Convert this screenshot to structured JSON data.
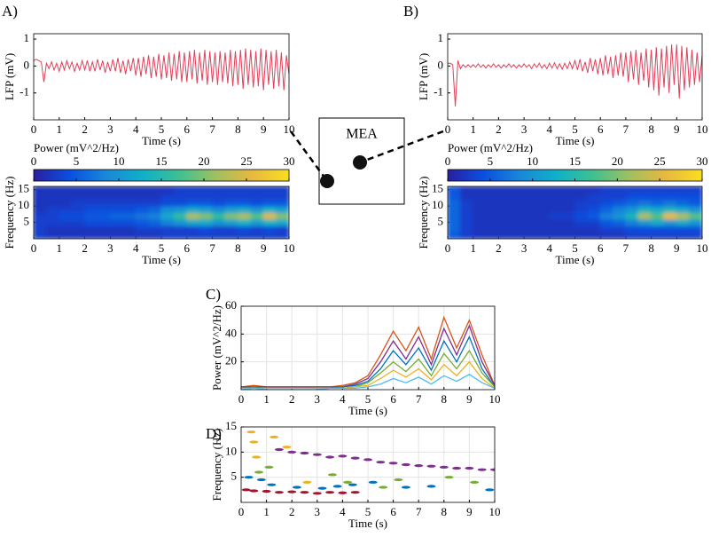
{
  "mea_label": "MEA",
  "chart_data": [
    {
      "type": "line",
      "panel": "A)",
      "ylabel": "LFP (mV)",
      "xlabel": "Time (s)",
      "color": "#e0405a",
      "xlim": [
        0,
        10
      ],
      "xticks": [
        0,
        1,
        2,
        3,
        4,
        5,
        6,
        7,
        8,
        9,
        10
      ],
      "ylim": [
        -2,
        1.2
      ],
      "yticks": [
        -1,
        0,
        1
      ],
      "x": [
        0,
        0.1,
        0.2,
        0.3,
        0.4,
        0.5,
        0.6,
        0.7,
        0.8,
        0.9,
        1,
        1.1,
        1.2,
        1.3,
        1.4,
        1.5,
        1.6,
        1.7,
        1.8,
        1.9,
        2,
        2.1,
        2.2,
        2.3,
        2.4,
        2.5,
        2.6,
        2.7,
        2.8,
        2.9,
        3,
        3.1,
        3.2,
        3.3,
        3.4,
        3.5,
        3.6,
        3.7,
        3.8,
        3.9,
        4,
        4.1,
        4.2,
        4.3,
        4.4,
        4.5,
        4.6,
        4.7,
        4.8,
        4.9,
        5,
        5.1,
        5.2,
        5.3,
        5.4,
        5.5,
        5.6,
        5.7,
        5.8,
        5.9,
        6,
        6.1,
        6.2,
        6.3,
        6.4,
        6.5,
        6.6,
        6.7,
        6.8,
        6.9,
        7,
        7.1,
        7.2,
        7.3,
        7.4,
        7.5,
        7.6,
        7.7,
        7.8,
        7.9,
        8,
        8.1,
        8.2,
        8.3,
        8.4,
        8.5,
        8.6,
        8.7,
        8.8,
        8.9,
        9,
        9.1,
        9.2,
        9.3,
        9.4,
        9.5,
        9.6,
        9.7,
        9.8,
        9.9,
        10
      ],
      "values": [
        0.2,
        0.25,
        0.2,
        0.15,
        -0.6,
        0.1,
        -0.1,
        0.15,
        -0.15,
        0.1,
        -0.2,
        0.15,
        -0.15,
        0.2,
        -0.1,
        0.15,
        -0.2,
        0.1,
        -0.15,
        0.2,
        -0.15,
        0.2,
        -0.2,
        0.15,
        -0.2,
        0.25,
        -0.15,
        0.2,
        -0.25,
        0.15,
        -0.2,
        0.25,
        -0.2,
        0.3,
        -0.25,
        0.2,
        -0.3,
        0.25,
        -0.2,
        0.3,
        -0.35,
        0.3,
        -0.4,
        0.35,
        -0.3,
        0.4,
        -0.45,
        0.35,
        -0.4,
        0.45,
        -0.5,
        0.4,
        -0.45,
        0.5,
        -0.55,
        0.45,
        -0.5,
        0.55,
        -0.6,
        0.5,
        -0.6,
        0.55,
        -0.5,
        0.6,
        -0.65,
        0.5,
        -0.55,
        0.6,
        -0.7,
        0.55,
        -0.6,
        0.5,
        -0.7,
        0.55,
        -0.6,
        0.5,
        -0.65,
        0.6,
        -0.75,
        0.55,
        -0.7,
        0.6,
        -0.85,
        0.65,
        -0.7,
        0.6,
        -0.8,
        0.55,
        -0.75,
        0.65,
        -0.9,
        0.6,
        -0.7,
        0.55,
        -0.85,
        0.6,
        -0.75,
        0.5,
        -0.9,
        0.4,
        -0.3
      ]
    },
    {
      "type": "heatmap",
      "ylabel": "Frequency (Hz)",
      "xlabel": "Time (s)",
      "colorbar_label": "Power (mV^2/Hz)",
      "xlim": [
        0,
        10
      ],
      "xticks": [
        0,
        1,
        2,
        3,
        4,
        5,
        6,
        7,
        8,
        9,
        10
      ],
      "ylim": [
        0,
        16
      ],
      "yticks": [
        5,
        10,
        15
      ],
      "zlim": [
        0,
        30
      ],
      "zticks": [
        0,
        5,
        10,
        15,
        20,
        25,
        30
      ],
      "colormap": [
        "#2a1fa0",
        "#0a50e0",
        "#1a88d8",
        "#10b0c8",
        "#40c090",
        "#a0c060",
        "#e8b840",
        "#f8e020"
      ],
      "x": [
        0.25,
        0.75,
        1.25,
        1.75,
        2.25,
        2.75,
        3.25,
        3.75,
        4.25,
        4.75,
        5.25,
        5.75,
        6.25,
        6.75,
        7.25,
        7.75,
        8.25,
        8.75,
        9.25,
        9.75
      ],
      "y": [
        1,
        3,
        5,
        7,
        9,
        11,
        13,
        15
      ],
      "z": [
        [
          3,
          2,
          2,
          2,
          2,
          2,
          2,
          2,
          2,
          2,
          3,
          3,
          3,
          3,
          3,
          3,
          3,
          3,
          3,
          3
        ],
        [
          3,
          2,
          2,
          2,
          2,
          2,
          2,
          2,
          3,
          3,
          3,
          3,
          3,
          4,
          3,
          3,
          4,
          3,
          4,
          3
        ],
        [
          3,
          3,
          3,
          3,
          4,
          4,
          4,
          4,
          5,
          6,
          8,
          10,
          12,
          12,
          10,
          11,
          13,
          11,
          13,
          12
        ],
        [
          3,
          3,
          4,
          4,
          5,
          5,
          6,
          6,
          7,
          8,
          12,
          16,
          22,
          20,
          16,
          20,
          22,
          18,
          25,
          20
        ],
        [
          2,
          3,
          3,
          3,
          4,
          4,
          4,
          4,
          5,
          6,
          9,
          10,
          12,
          11,
          9,
          11,
          12,
          10,
          13,
          11
        ],
        [
          2,
          2,
          2,
          3,
          3,
          3,
          3,
          3,
          3,
          3,
          4,
          4,
          5,
          5,
          4,
          5,
          5,
          4,
          5,
          5
        ],
        [
          2,
          2,
          2,
          2,
          2,
          2,
          2,
          2,
          2,
          2,
          3,
          3,
          3,
          3,
          3,
          3,
          3,
          3,
          3,
          3
        ],
        [
          2,
          2,
          2,
          2,
          2,
          2,
          2,
          2,
          2,
          2,
          2,
          3,
          3,
          3,
          3,
          3,
          3,
          3,
          3,
          3
        ]
      ]
    },
    {
      "type": "line",
      "panel": "B)",
      "ylabel": "LFP (mV)",
      "xlabel": "Time (s)",
      "color": "#e0405a",
      "xlim": [
        0,
        10
      ],
      "xticks": [
        0,
        1,
        2,
        3,
        4,
        5,
        6,
        7,
        8,
        9,
        10
      ],
      "ylim": [
        -2,
        1.2
      ],
      "yticks": [
        -1,
        0,
        1
      ],
      "x": [
        0,
        0.1,
        0.2,
        0.3,
        0.4,
        0.5,
        0.6,
        0.7,
        0.8,
        0.9,
        1,
        1.1,
        1.2,
        1.3,
        1.4,
        1.5,
        1.6,
        1.7,
        1.8,
        1.9,
        2,
        2.1,
        2.2,
        2.3,
        2.4,
        2.5,
        2.6,
        2.7,
        2.8,
        2.9,
        3,
        3.1,
        3.2,
        3.3,
        3.4,
        3.5,
        3.6,
        3.7,
        3.8,
        3.9,
        4,
        4.1,
        4.2,
        4.3,
        4.4,
        4.5,
        4.6,
        4.7,
        4.8,
        4.9,
        5,
        5.1,
        5.2,
        5.3,
        5.4,
        5.5,
        5.6,
        5.7,
        5.8,
        5.9,
        6,
        6.1,
        6.2,
        6.3,
        6.4,
        6.5,
        6.6,
        6.7,
        6.8,
        6.9,
        7,
        7.1,
        7.2,
        7.3,
        7.4,
        7.5,
        7.6,
        7.7,
        7.8,
        7.9,
        8,
        8.1,
        8.2,
        8.3,
        8.4,
        8.5,
        8.6,
        8.7,
        8.8,
        8.9,
        9,
        9.1,
        9.2,
        9.3,
        9.4,
        9.5,
        9.6,
        9.7,
        9.8,
        9.9,
        10
      ],
      "values": [
        0.1,
        0.1,
        0.05,
        -1.5,
        0.2,
        -0.1,
        0.05,
        -0.05,
        0.05,
        -0.05,
        0.05,
        -0.05,
        0.08,
        -0.05,
        0.05,
        -0.08,
        0.05,
        -0.05,
        0.08,
        -0.05,
        0.05,
        -0.08,
        0.05,
        -0.05,
        0.08,
        -0.05,
        0.05,
        -0.08,
        0.05,
        -0.05,
        0.08,
        -0.05,
        0.05,
        -0.1,
        0.08,
        -0.05,
        0.1,
        -0.08,
        0.05,
        -0.1,
        0.1,
        -0.08,
        0.12,
        -0.1,
        0.08,
        -0.12,
        0.1,
        -0.1,
        0.15,
        -0.1,
        0.2,
        -0.15,
        0.25,
        -0.2,
        0.15,
        -0.25,
        0.3,
        -0.2,
        0.25,
        -0.3,
        0.3,
        -0.35,
        0.4,
        -0.3,
        0.35,
        -0.45,
        0.4,
        -0.35,
        0.5,
        -0.4,
        0.5,
        -0.6,
        0.55,
        -0.5,
        0.6,
        -0.7,
        0.5,
        -0.55,
        0.65,
        -0.8,
        0.6,
        -0.9,
        0.7,
        -1.1,
        0.65,
        -0.8,
        0.75,
        -1.0,
        0.8,
        -0.7,
        0.8,
        -1.2,
        0.75,
        -0.9,
        0.7,
        -0.8,
        0.6,
        -0.7,
        0.5,
        -0.6,
        0.4
      ]
    },
    {
      "type": "heatmap",
      "ylabel": "Frequency (Hz)",
      "xlabel": "Time (s)",
      "colorbar_label": "Power (mV^2/Hz)",
      "xlim": [
        0,
        10
      ],
      "xticks": [
        0,
        1,
        2,
        3,
        4,
        5,
        6,
        7,
        8,
        9,
        10
      ],
      "ylim": [
        0,
        16
      ],
      "yticks": [
        5,
        10,
        15
      ],
      "zlim": [
        0,
        30
      ],
      "zticks": [
        0,
        5,
        10,
        15,
        20,
        25,
        30
      ],
      "colormap": [
        "#2a1fa0",
        "#0a50e0",
        "#1a88d8",
        "#10b0c8",
        "#40c090",
        "#a0c060",
        "#e8b840",
        "#f8e020"
      ],
      "x": [
        0.25,
        0.75,
        1.25,
        1.75,
        2.25,
        2.75,
        3.25,
        3.75,
        4.25,
        4.75,
        5.25,
        5.75,
        6.25,
        6.75,
        7.25,
        7.75,
        8.25,
        8.75,
        9.25,
        9.75
      ],
      "y": [
        1,
        3,
        5,
        7,
        9,
        11,
        13,
        15
      ],
      "z": [
        [
          5,
          3,
          2,
          2,
          2,
          2,
          2,
          2,
          2,
          2,
          2,
          2,
          2,
          2,
          3,
          3,
          3,
          3,
          3,
          3
        ],
        [
          6,
          3,
          2,
          2,
          2,
          2,
          2,
          2,
          2,
          2,
          2,
          2,
          3,
          3,
          4,
          4,
          4,
          4,
          4,
          4
        ],
        [
          6,
          3,
          2,
          2,
          2,
          2,
          2,
          2,
          2,
          2,
          3,
          3,
          5,
          6,
          8,
          10,
          12,
          10,
          12,
          10
        ],
        [
          6,
          3,
          2,
          2,
          2,
          2,
          2,
          2,
          3,
          3,
          4,
          5,
          8,
          10,
          14,
          22,
          18,
          26,
          22,
          18
        ],
        [
          6,
          3,
          2,
          2,
          2,
          2,
          2,
          2,
          2,
          2,
          3,
          4,
          6,
          8,
          10,
          14,
          12,
          14,
          12,
          10
        ],
        [
          6,
          3,
          2,
          2,
          2,
          2,
          2,
          2,
          2,
          2,
          3,
          3,
          4,
          5,
          6,
          7,
          6,
          7,
          6,
          5
        ],
        [
          5,
          2,
          2,
          2,
          2,
          2,
          2,
          2,
          2,
          2,
          2,
          3,
          3,
          3,
          4,
          4,
          4,
          4,
          4,
          4
        ],
        [
          5,
          2,
          2,
          2,
          2,
          2,
          2,
          2,
          2,
          2,
          2,
          2,
          3,
          3,
          3,
          3,
          3,
          3,
          3,
          3
        ]
      ]
    },
    {
      "type": "line",
      "panel": "C)",
      "ylabel": "Power (mV^2/Hz)",
      "xlabel": "Time (s)",
      "grid": true,
      "xlim": [
        0,
        10
      ],
      "xticks": [
        0,
        1,
        2,
        3,
        4,
        5,
        6,
        7,
        8,
        9,
        10
      ],
      "ylim": [
        0,
        60
      ],
      "yticks": [
        20,
        40,
        60
      ],
      "x": [
        0,
        0.5,
        1,
        1.5,
        2,
        2.5,
        3,
        3.5,
        4,
        4.5,
        5,
        5.5,
        6,
        6.5,
        7,
        7.5,
        8,
        8.5,
        9,
        9.5,
        10
      ],
      "series": [
        {
          "color": "#d95319",
          "values": [
            2,
            3,
            2,
            2,
            2,
            2,
            2,
            2,
            3,
            5,
            10,
            25,
            42,
            28,
            45,
            22,
            52,
            30,
            50,
            25,
            3
          ]
        },
        {
          "color": "#7e2f8e",
          "values": [
            2,
            2,
            2,
            2,
            2,
            2,
            2,
            2,
            2,
            4,
            8,
            20,
            35,
            22,
            38,
            18,
            44,
            25,
            46,
            20,
            3
          ]
        },
        {
          "color": "#0072bd",
          "values": [
            1,
            2,
            1,
            1,
            1,
            1,
            1,
            1,
            2,
            3,
            6,
            15,
            28,
            18,
            30,
            14,
            35,
            20,
            38,
            15,
            2
          ]
        },
        {
          "color": "#77ac30",
          "values": [
            1,
            1,
            1,
            1,
            1,
            1,
            1,
            1,
            1,
            2,
            5,
            12,
            20,
            13,
            22,
            10,
            26,
            15,
            28,
            12,
            2
          ]
        },
        {
          "color": "#edb120",
          "values": [
            1,
            1,
            1,
            1,
            1,
            1,
            1,
            1,
            1,
            2,
            3,
            8,
            14,
            9,
            15,
            7,
            18,
            10,
            20,
            8,
            1
          ]
        },
        {
          "color": "#4dbeee",
          "values": [
            0,
            1,
            0,
            0,
            0,
            0,
            0,
            1,
            1,
            1,
            2,
            4,
            8,
            5,
            9,
            4,
            10,
            6,
            11,
            5,
            1
          ]
        }
      ]
    },
    {
      "type": "scatter",
      "panel": "D)",
      "ylabel": "Frequency (Hz)",
      "xlabel": "Time (s)",
      "grid": true,
      "xlim": [
        0,
        10
      ],
      "xticks": [
        0,
        1,
        2,
        3,
        4,
        5,
        6,
        7,
        8,
        9,
        10
      ],
      "ylim": [
        0,
        15
      ],
      "yticks": [
        5,
        10,
        15
      ],
      "series": [
        {
          "color": "#7e2f8e",
          "x": [
            1.5,
            2,
            2.5,
            3,
            3.5,
            4,
            4.5,
            5,
            5.5,
            6,
            6.5,
            7,
            7.5,
            8,
            8.5,
            9,
            9.5,
            10
          ],
          "values": [
            10.5,
            10,
            9.8,
            9.5,
            9,
            9.2,
            8.8,
            8.5,
            8,
            7.8,
            7.5,
            7.3,
            7.2,
            7,
            6.8,
            6.8,
            6.5,
            6.5
          ]
        },
        {
          "color": "#a2142f",
          "x": [
            0.2,
            0.5,
            1,
            1.5,
            2,
            2.5,
            3,
            3.5,
            4,
            4.5
          ],
          "values": [
            2.5,
            2.3,
            2.2,
            2,
            2.1,
            2,
            1.8,
            2,
            1.9,
            2
          ]
        },
        {
          "color": "#0072bd",
          "x": [
            0.3,
            0.8,
            1.2,
            2.2,
            3.2,
            3.8,
            4.4,
            5.2,
            6.5,
            7.5,
            9.8
          ],
          "values": [
            5,
            4.5,
            3.5,
            3,
            2.8,
            3.2,
            3.5,
            4,
            3,
            3.2,
            2.5
          ]
        },
        {
          "color": "#edb120",
          "x": [
            0.4,
            0.5,
            0.6,
            1.3,
            1.8,
            2.6
          ],
          "values": [
            14,
            12,
            9,
            13,
            11,
            4
          ]
        },
        {
          "color": "#77ac30",
          "x": [
            0.7,
            1.1,
            3.6,
            4.2,
            5.6,
            6.2,
            8.2,
            9.2
          ],
          "values": [
            6,
            7,
            5.5,
            4,
            3,
            4.5,
            5,
            4
          ]
        }
      ]
    }
  ]
}
